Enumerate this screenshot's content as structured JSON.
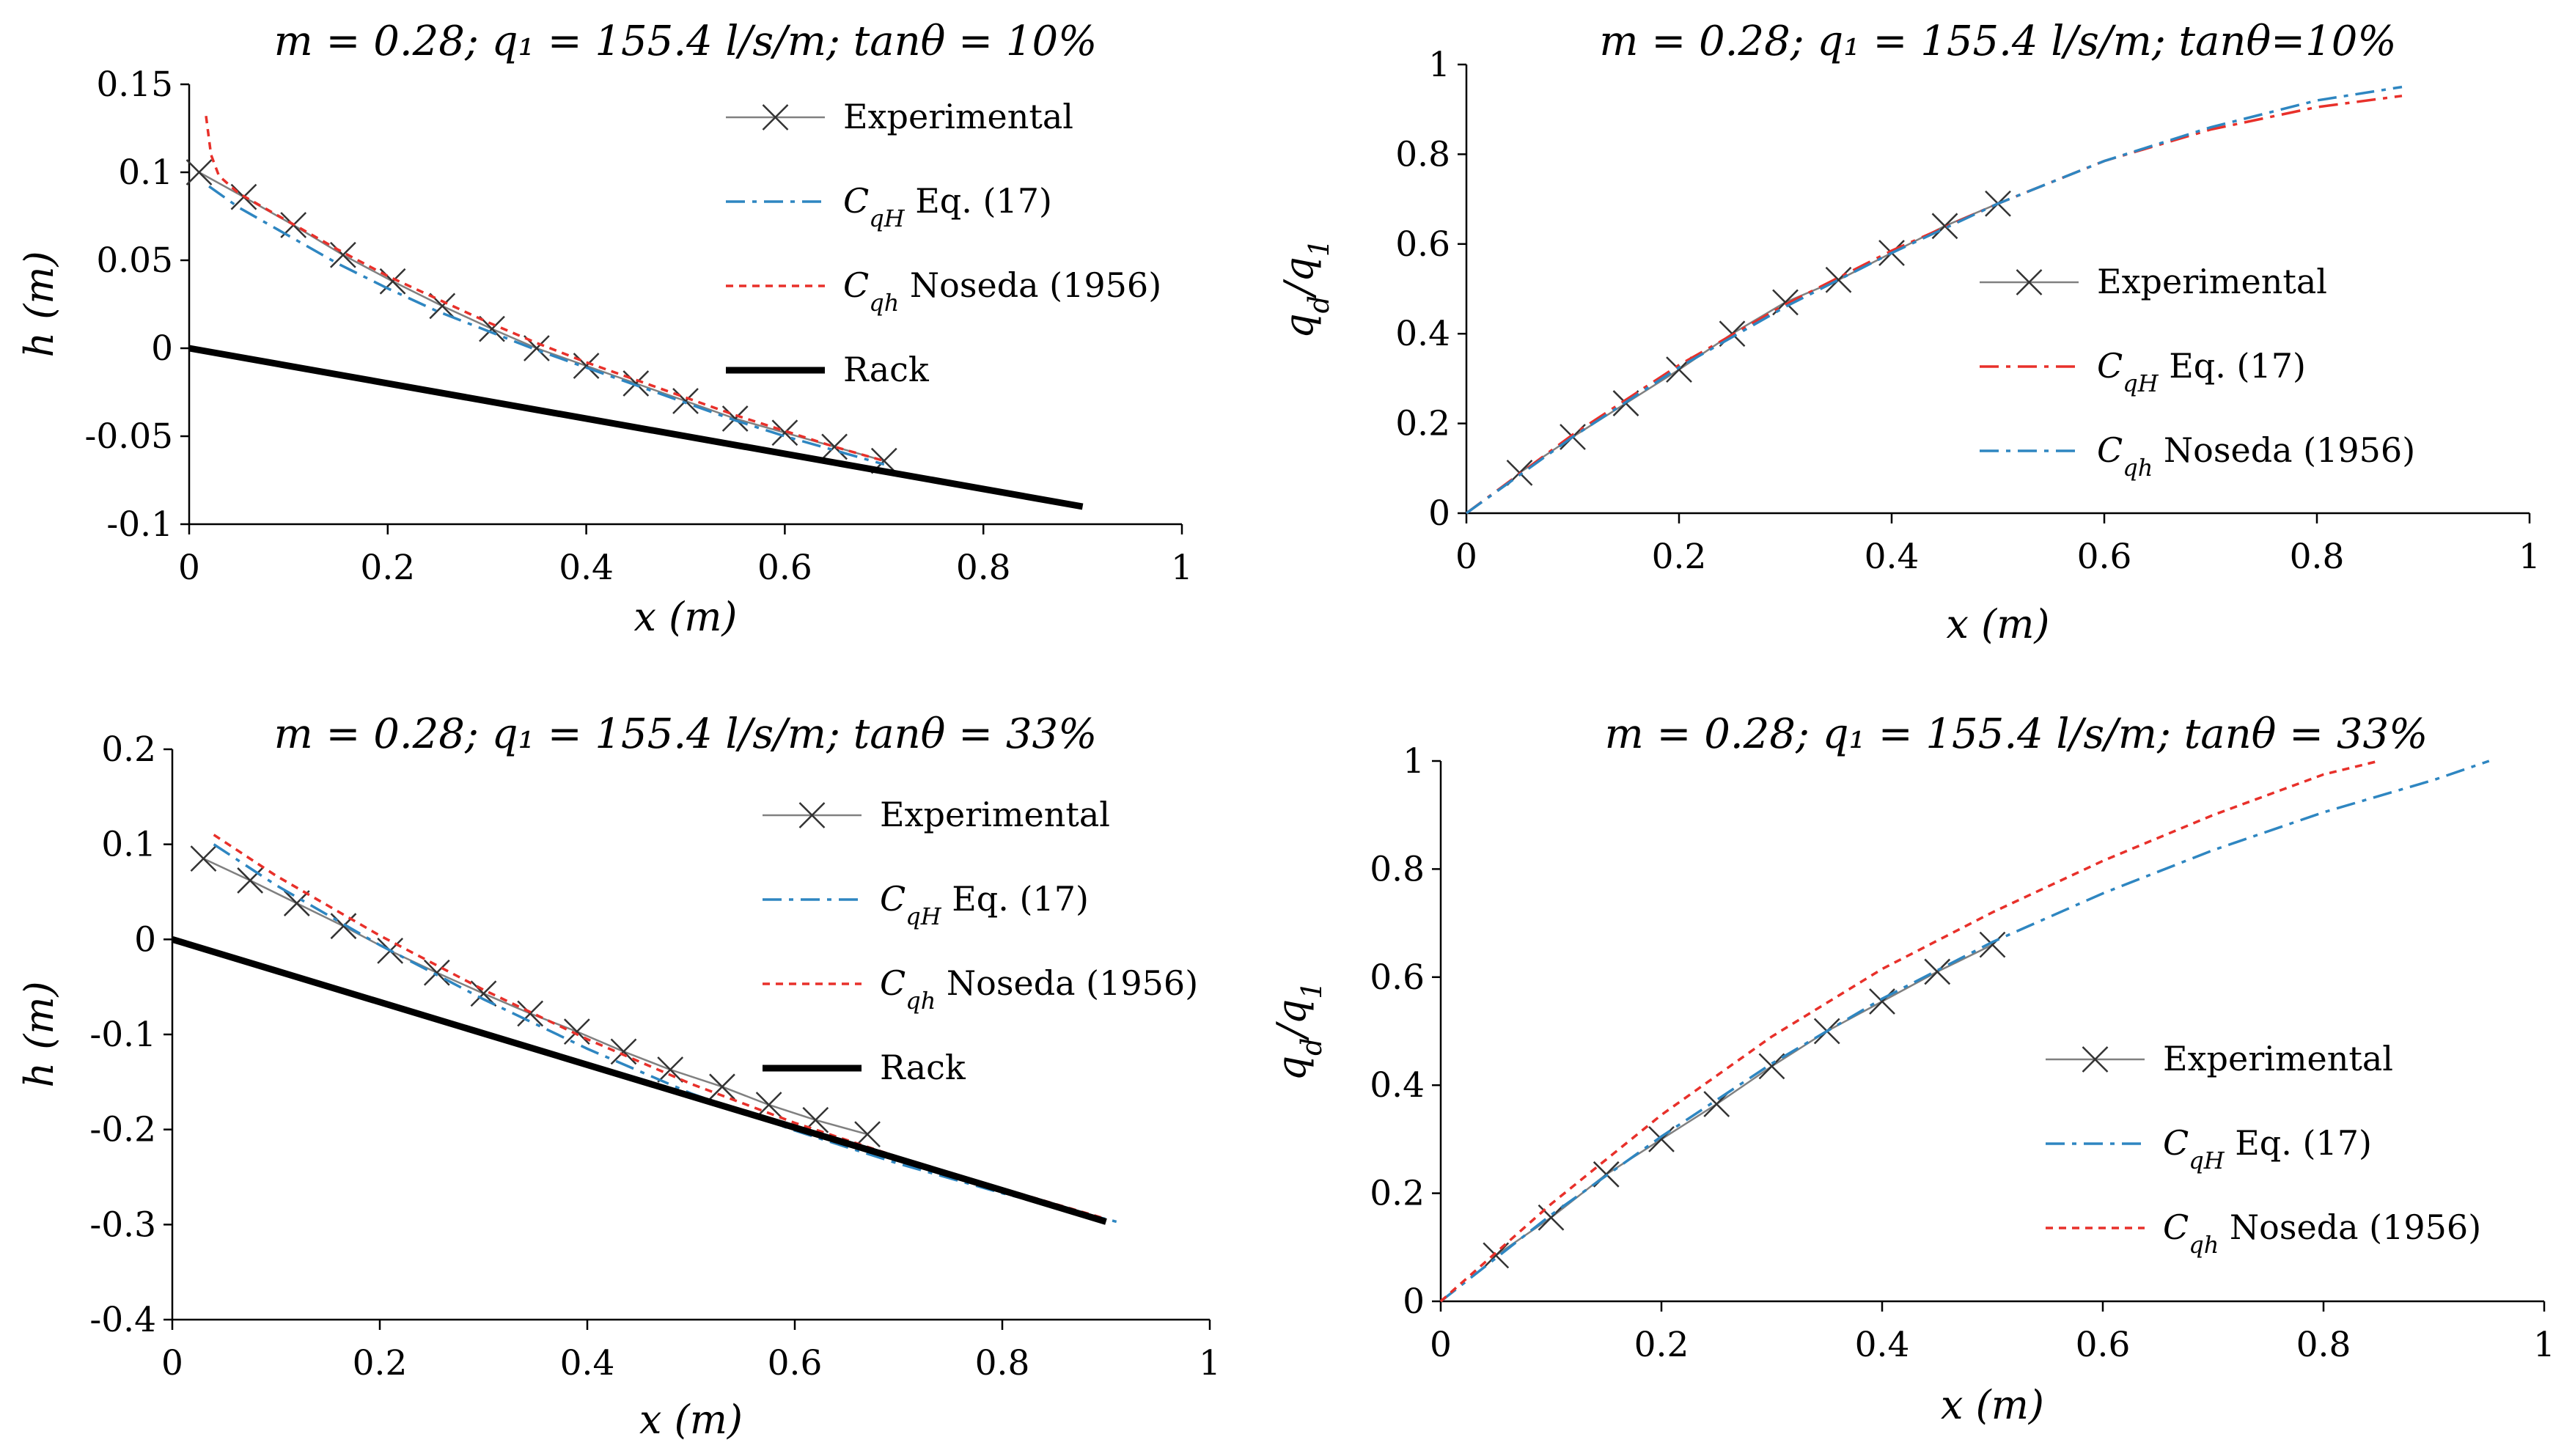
{
  "chart_data": [
    {
      "type": "line",
      "title": "m = 0.28; q₁ = 155.4 l/s/m; tanθ = 10%",
      "xlabel": "x (m)",
      "ylabel": "h (m)",
      "xlim": [
        0,
        1
      ],
      "ylim": [
        -0.1,
        0.15
      ],
      "xticks": [
        "0",
        "0.2",
        "0.4",
        "0.6",
        "0.8",
        "1"
      ],
      "yticks": [
        "-0.1",
        "-0.05",
        "0",
        "0.05",
        "0.1",
        "0.15"
      ],
      "legend": [
        {
          "main": "Experimental",
          "sub": ""
        },
        {
          "main": "C",
          "sub": "qH",
          "rest": " Eq. (17)"
        },
        {
          "main": "C",
          "sub": "qh",
          "rest": " Noseda (1956)"
        },
        {
          "main": "Rack",
          "sub": ""
        }
      ],
      "series": [
        {
          "name": "Experimental",
          "color": "#808080",
          "style": "marker-x",
          "x": [
            0.01,
            0.055,
            0.105,
            0.155,
            0.205,
            0.255,
            0.305,
            0.35,
            0.4,
            0.45,
            0.5,
            0.55,
            0.6,
            0.65,
            0.7
          ],
          "y": [
            0.1,
            0.086,
            0.07,
            0.053,
            0.038,
            0.024,
            0.011,
            0.0,
            -0.01,
            -0.02,
            -0.03,
            -0.04,
            -0.048,
            -0.056,
            -0.064
          ]
        },
        {
          "name": "CqH Eq. (17)",
          "color": "#2e86c1",
          "style": "dashdot",
          "x": [
            0.02,
            0.05,
            0.1,
            0.15,
            0.2,
            0.25,
            0.3,
            0.35,
            0.4,
            0.45,
            0.5,
            0.55,
            0.6,
            0.65,
            0.7
          ],
          "y": [
            0.092,
            0.08,
            0.064,
            0.048,
            0.034,
            0.021,
            0.01,
            -0.001,
            -0.011,
            -0.021,
            -0.031,
            -0.041,
            -0.05,
            -0.058,
            -0.066
          ]
        },
        {
          "name": "Cqh Noseda (1956)",
          "color": "#e8302a",
          "style": "dotted",
          "x": [
            0.017,
            0.022,
            0.03,
            0.05,
            0.1,
            0.15,
            0.2,
            0.25,
            0.3,
            0.35,
            0.4,
            0.45,
            0.5,
            0.55,
            0.6,
            0.65,
            0.7
          ],
          "y": [
            0.132,
            0.11,
            0.098,
            0.088,
            0.072,
            0.056,
            0.041,
            0.028,
            0.015,
            0.003,
            -0.008,
            -0.018,
            -0.028,
            -0.038,
            -0.047,
            -0.056,
            -0.064
          ]
        },
        {
          "name": "Rack",
          "color": "#000000",
          "style": "thick",
          "x": [
            0,
            0.9
          ],
          "y": [
            0,
            -0.09
          ]
        }
      ]
    },
    {
      "type": "line",
      "title": "m = 0.28; q₁ = 155.4 l/s/m; tanθ=10%",
      "xlabel": "x (m)",
      "ylabel": "q_d/q_1",
      "xlim": [
        0,
        1
      ],
      "ylim": [
        0,
        1
      ],
      "xticks": [
        "0",
        "0.2",
        "0.4",
        "0.6",
        "0.8",
        "1"
      ],
      "yticks": [
        "0",
        "0.2",
        "0.4",
        "0.6",
        "0.8",
        "1"
      ],
      "legend": [
        {
          "main": "Experimental",
          "sub": ""
        },
        {
          "main": "C",
          "sub": "qH",
          "rest": "  Eq. (17)"
        },
        {
          "main": "C",
          "sub": "qh",
          "rest": " Noseda (1956)"
        }
      ],
      "series": [
        {
          "name": "Experimental",
          "color": "#808080",
          "style": "marker-x",
          "x": [
            0.05,
            0.1,
            0.15,
            0.2,
            0.25,
            0.3,
            0.35,
            0.4,
            0.45,
            0.5
          ],
          "y": [
            0.09,
            0.17,
            0.245,
            0.32,
            0.4,
            0.47,
            0.52,
            0.58,
            0.64,
            0.69
          ]
        },
        {
          "name": "CqH Eq. (17)",
          "color": "#e8302a",
          "style": "dashdot",
          "x": [
            0,
            0.1,
            0.2,
            0.3,
            0.4,
            0.5,
            0.6,
            0.7,
            0.8,
            0.88
          ],
          "y": [
            0,
            0.175,
            0.33,
            0.465,
            0.585,
            0.69,
            0.785,
            0.855,
            0.905,
            0.93
          ]
        },
        {
          "name": "Cqh Noseda (1956)",
          "color": "#2e86c1",
          "style": "dashdot",
          "x": [
            0,
            0.1,
            0.2,
            0.3,
            0.4,
            0.5,
            0.6,
            0.7,
            0.8,
            0.88
          ],
          "y": [
            0,
            0.17,
            0.325,
            0.46,
            0.58,
            0.69,
            0.785,
            0.86,
            0.92,
            0.95
          ]
        }
      ]
    },
    {
      "type": "line",
      "title": "m = 0.28; q₁ = 155.4 l/s/m; tanθ = 33%",
      "xlabel": "x (m)",
      "ylabel": "h (m)",
      "xlim": [
        0,
        1
      ],
      "ylim": [
        -0.4,
        0.2
      ],
      "xticks": [
        "0",
        "0.2",
        "0.4",
        "0.6",
        "0.8",
        "1"
      ],
      "yticks": [
        "-0.4",
        "-0.3",
        "-0.2",
        "-0.1",
        "0",
        "0.1",
        "0.2"
      ],
      "legend": [
        {
          "main": "Experimental",
          "sub": ""
        },
        {
          "main": "C",
          "sub": "qH",
          "rest": " Eq. (17)"
        },
        {
          "main": "C",
          "sub": "qh",
          "rest": " Noseda (1956)"
        },
        {
          "main": "Rack",
          "sub": ""
        }
      ],
      "series": [
        {
          "name": "Experimental",
          "color": "#808080",
          "style": "marker-x",
          "x": [
            0.03,
            0.075,
            0.12,
            0.165,
            0.21,
            0.255,
            0.3,
            0.345,
            0.39,
            0.435,
            0.48,
            0.53,
            0.575,
            0.62,
            0.67
          ],
          "y": [
            0.085,
            0.062,
            0.038,
            0.014,
            -0.012,
            -0.035,
            -0.057,
            -0.078,
            -0.097,
            -0.118,
            -0.137,
            -0.155,
            -0.174,
            -0.19,
            -0.205
          ]
        },
        {
          "name": "CqH Eq. (17)",
          "color": "#2e86c1",
          "style": "dashdot",
          "x": [
            0.04,
            0.1,
            0.2,
            0.3,
            0.4,
            0.5,
            0.6,
            0.7,
            0.8,
            0.91
          ],
          "y": [
            0.1,
            0.057,
            -0.006,
            -0.063,
            -0.115,
            -0.162,
            -0.201,
            -0.236,
            -0.267,
            -0.297
          ]
        },
        {
          "name": "Cqh Noseda (1956)",
          "color": "#e8302a",
          "style": "dotted",
          "x": [
            0.04,
            0.1,
            0.2,
            0.3,
            0.4,
            0.5,
            0.6,
            0.7,
            0.8,
            0.9
          ],
          "y": [
            0.11,
            0.067,
            0.004,
            -0.053,
            -0.105,
            -0.152,
            -0.193,
            -0.229,
            -0.262,
            -0.294
          ]
        },
        {
          "name": "Rack",
          "color": "#000000",
          "style": "thick",
          "x": [
            0,
            0.9
          ],
          "y": [
            0,
            -0.297
          ]
        }
      ]
    },
    {
      "type": "line",
      "title": "m = 0.28; q₁ = 155.4 l/s/m; tanθ = 33%",
      "xlabel": "x (m)",
      "ylabel": "q_d/q_1",
      "xlim": [
        0,
        1
      ],
      "ylim": [
        0,
        1
      ],
      "xticks": [
        "0",
        "0.2",
        "0.4",
        "0.6",
        "0.8",
        "1"
      ],
      "yticks": [
        "0",
        "0.2",
        "0.4",
        "0.6",
        "0.8",
        "1"
      ],
      "legend": [
        {
          "main": "Experimental",
          "sub": ""
        },
        {
          "main": "C",
          "sub": "qH",
          "rest": " Eq. (17)"
        },
        {
          "main": "C",
          "sub": "qh",
          "rest": "  Noseda (1956)"
        }
      ],
      "series": [
        {
          "name": "Experimental",
          "color": "#808080",
          "style": "marker-x",
          "x": [
            0.05,
            0.1,
            0.15,
            0.2,
            0.25,
            0.3,
            0.35,
            0.4,
            0.45,
            0.5
          ],
          "y": [
            0.085,
            0.155,
            0.235,
            0.3,
            0.365,
            0.435,
            0.5,
            0.555,
            0.61,
            0.66
          ]
        },
        {
          "name": "CqH Eq. (17)",
          "color": "#2e86c1",
          "style": "dashdot",
          "x": [
            0,
            0.1,
            0.2,
            0.3,
            0.4,
            0.5,
            0.6,
            0.7,
            0.8,
            0.9,
            0.95
          ],
          "y": [
            0,
            0.16,
            0.305,
            0.44,
            0.56,
            0.665,
            0.755,
            0.835,
            0.905,
            0.965,
            1.0
          ]
        },
        {
          "name": "Cqh Noseda (1956)",
          "color": "#e8302a",
          "style": "dotted",
          "x": [
            0,
            0.1,
            0.2,
            0.3,
            0.4,
            0.5,
            0.6,
            0.7,
            0.8,
            0.85
          ],
          "y": [
            0,
            0.18,
            0.345,
            0.49,
            0.615,
            0.72,
            0.815,
            0.9,
            0.975,
            1.0
          ]
        }
      ]
    }
  ]
}
